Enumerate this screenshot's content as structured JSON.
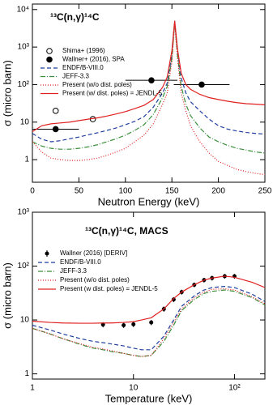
{
  "chart_data": [
    {
      "type": "line",
      "title": "¹³C(n,γ)¹⁴C",
      "xlabel": "Neutron Energy (keV)",
      "ylabel": "σ (micro barn)",
      "xscale": "linear",
      "yscale": "log",
      "xlim": [
        0,
        250
      ],
      "ylim": [
        0.25,
        14000
      ],
      "xticks": [
        0,
        50,
        100,
        150,
        200,
        250
      ],
      "yticks": [
        1,
        10,
        {
          "value": 100,
          "label": "10²"
        },
        {
          "value": 1000,
          "label": "10³"
        },
        {
          "value": 10000,
          "label": "10⁴"
        }
      ],
      "legend": "upper-left",
      "grid": false,
      "x": [
        0,
        10,
        20,
        30,
        40,
        50,
        60,
        70,
        80,
        90,
        100,
        110,
        120,
        130,
        140,
        145,
        150,
        153,
        156,
        160,
        165,
        170,
        180,
        190,
        200,
        210,
        220,
        230,
        240,
        250
      ],
      "series": [
        {
          "name": "Shima+ (1996)",
          "type": "scatter",
          "marker": "open",
          "color": "#000000",
          "x": [
            25,
            65
          ],
          "values": [
            20,
            12
          ]
        },
        {
          "name": "Wallner+ (2016), SPA",
          "type": "scatter",
          "marker": "filled",
          "color": "#000000",
          "x": [
            25,
            128,
            182
          ],
          "values": [
            6.5,
            130,
            100
          ],
          "xerr": [
            25,
            28,
            30
          ]
        },
        {
          "name": "ENDF/B-VIII.0",
          "type": "line",
          "style": "dashed",
          "color": "#1f3f9f",
          "values": [
            5,
            3.5,
            3,
            3.2,
            3.6,
            4,
            4.6,
            5.2,
            6,
            7,
            8.5,
            10.5,
            14,
            25,
            60,
            110,
            600,
            5000,
            800,
            150,
            60,
            35,
            20,
            12,
            8,
            6.5,
            5.8,
            5.3,
            5,
            4.8
          ]
        },
        {
          "name": "JEFF-3.3",
          "type": "line",
          "style": "dashdot",
          "color": "#3a8f3a",
          "values": [
            3,
            2.3,
            2,
            1.9,
            1.9,
            2,
            2.2,
            2.5,
            3,
            3.6,
            4.5,
            6,
            8.5,
            16,
            45,
            90,
            500,
            4500,
            600,
            90,
            30,
            15,
            7,
            4,
            3,
            2.4,
            2,
            1.8,
            1.6,
            1.5
          ]
        },
        {
          "name": "Present (w/o dist. poles)",
          "type": "line",
          "style": "dotted",
          "color": "#e02020",
          "values": [
            3,
            1.6,
            1.1,
            1,
            0.95,
            0.95,
            1,
            1.1,
            1.3,
            1.6,
            2,
            3,
            4.5,
            9,
            30,
            60,
            400,
            4500,
            500,
            60,
            20,
            8,
            3,
            1.5,
            0.9,
            0.7,
            0.55,
            0.48,
            0.43,
            0.4
          ]
        },
        {
          "name": "Present (w/  dist. poles) = JENDL-5",
          "type": "line",
          "style": "solid",
          "color": "#e02020",
          "values": [
            5.6,
            8,
            9,
            9.5,
            10,
            11,
            12,
            13,
            14.5,
            16.5,
            19,
            23,
            28,
            40,
            85,
            160,
            800,
            5000,
            900,
            200,
            100,
            75,
            55,
            45,
            40,
            36,
            33,
            31,
            30,
            29
          ]
        }
      ]
    },
    {
      "type": "line",
      "title": "¹³C(n,γ)¹⁴C, MACS",
      "xlabel": "Temperature (keV)",
      "ylabel": "σ (micro barn)",
      "xscale": "log",
      "yscale": "log",
      "xlim": [
        1,
        200
      ],
      "ylim": [
        0.8,
        1000
      ],
      "xticks": [
        1,
        10,
        {
          "value": 100,
          "label": "10²"
        }
      ],
      "yticks": [
        1,
        10,
        {
          "value": 100,
          "label": "10²"
        },
        {
          "value": 1000,
          "label": "10³"
        }
      ],
      "legend": "upper-left",
      "grid": false,
      "x": [
        1,
        1.5,
        2,
        3,
        4,
        5,
        6,
        8,
        10,
        12,
        15,
        20,
        25,
        30,
        40,
        50,
        60,
        80,
        100,
        150,
        200
      ],
      "series": [
        {
          "name": "Wallner (2016) [DERIV]",
          "type": "scatter",
          "marker": "filled",
          "color": "#000000",
          "x": [
            5,
            8,
            10,
            15,
            20,
            25,
            30,
            40,
            50,
            60,
            80,
            100
          ],
          "values": [
            8.2,
            8,
            8.3,
            9,
            16,
            24,
            33,
            45,
            55,
            60,
            65,
            65
          ],
          "yerr": [
            0.9,
            0.9,
            0.9,
            1,
            1.8,
            2.6,
            3.5,
            4.5,
            5.5,
            6,
            6.5,
            6.5
          ]
        },
        {
          "name": "ENDF/B-VIII.0",
          "type": "line",
          "style": "dashed",
          "color": "#1f3f9f",
          "values": [
            8,
            6.5,
            5.5,
            4.5,
            4,
            3.8,
            3.6,
            3.3,
            3,
            2.8,
            2.8,
            5,
            10,
            18,
            28,
            36,
            40,
            42,
            40,
            30,
            22
          ]
        },
        {
          "name": "JEFF-3.3",
          "type": "line",
          "style": "dashdot",
          "color": "#3a8f3a",
          "values": [
            7,
            5.5,
            4.5,
            3.5,
            3,
            2.8,
            2.6,
            2.4,
            2.2,
            2.1,
            2.2,
            4,
            8,
            15,
            24,
            31,
            34,
            36,
            34,
            26,
            19
          ]
        },
        {
          "name": "Present (w/o dist. poles)",
          "type": "line",
          "style": "dotted",
          "color": "#e02020",
          "values": [
            7,
            5.5,
            4.5,
            3.6,
            3.1,
            2.9,
            2.7,
            2.4,
            2.2,
            2.1,
            2.2,
            4.5,
            9,
            16,
            26,
            33,
            37,
            38,
            36,
            27,
            20
          ]
        },
        {
          "name": "Present (w   dist. poles) = JENDL-5",
          "type": "line",
          "style": "solid",
          "color": "#e02020",
          "values": [
            9.5,
            9,
            8.8,
            8.7,
            8.7,
            8.8,
            8.8,
            9,
            9.3,
            10,
            11,
            16,
            25,
            33,
            45,
            55,
            60,
            65,
            62,
            50,
            40
          ]
        }
      ]
    }
  ]
}
